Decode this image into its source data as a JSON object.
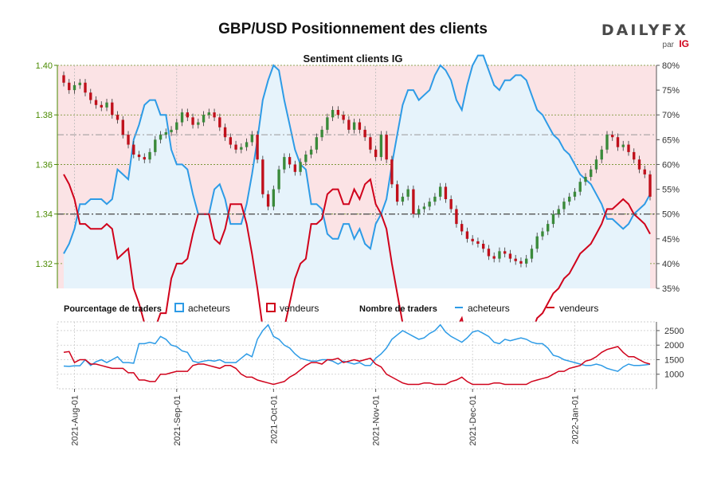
{
  "header": {
    "title": "GBP/USD Positionnement des clients",
    "subtitle": "Sentiment clients IG",
    "logo_text": "DAILYFX",
    "logo_par": "par",
    "logo_ig": "IG"
  },
  "legend": {
    "pct_title": "Pourcentage de traders",
    "pct_buyers": "acheteurs",
    "pct_sellers": "vendeurs",
    "count_title": "Nombre de traders",
    "count_buyers": "acheteurs",
    "count_sellers": "vendeurs"
  },
  "colors": {
    "buyers_line": "#2d9be6",
    "buyers_fill": "#e6f3fb",
    "sellers_line": "#d0021b",
    "sellers_bg": "#fbe3e5",
    "candle_up": "#3a8a3a",
    "candle_down": "#c0101b",
    "axis_left": "#4a8a00"
  },
  "chart_data": {
    "type": "candlestick",
    "title": "Sentiment clients IG",
    "n": 110,
    "price_axis": {
      "ticks": [
        "1.32",
        "1.34",
        "1.36",
        "1.38",
        "1.40"
      ],
      "min": 1.31,
      "max": 1.4
    },
    "pct_axis": {
      "ticks": [
        "35%",
        "40%",
        "45%",
        "50%",
        "55%",
        "60%",
        "65%",
        "70%",
        "75%",
        "80%"
      ],
      "min": 35,
      "max": 80
    },
    "count_axis": {
      "ticks": [
        "1000",
        "1500",
        "2000",
        "2500"
      ],
      "min": 500,
      "max": 2800
    },
    "date_labels": [
      {
        "i": 2,
        "label": "2021-Aug-01"
      },
      {
        "i": 21,
        "label": "2021-Sep-01"
      },
      {
        "i": 39,
        "label": "2021-Oct-01"
      },
      {
        "i": 58,
        "label": "2021-Nov-01"
      },
      {
        "i": 76,
        "label": "2021-Dec-01"
      },
      {
        "i": 95,
        "label": "2022-Jan-01"
      }
    ],
    "reference_lines": {
      "pct_50": 50,
      "price_dashdot": 1.372
    },
    "close": [
      1.393,
      1.39,
      1.392,
      1.393,
      1.389,
      1.386,
      1.384,
      1.383,
      1.385,
      1.38,
      1.378,
      1.372,
      1.368,
      1.364,
      1.363,
      1.362,
      1.365,
      1.37,
      1.372,
      1.373,
      1.374,
      1.377,
      1.381,
      1.379,
      1.376,
      1.377,
      1.38,
      1.381,
      1.379,
      1.375,
      1.371,
      1.368,
      1.366,
      1.367,
      1.369,
      1.372,
      1.362,
      1.348,
      1.343,
      1.35,
      1.358,
      1.363,
      1.36,
      1.357,
      1.361,
      1.364,
      1.366,
      1.371,
      1.374,
      1.379,
      1.382,
      1.38,
      1.378,
      1.374,
      1.377,
      1.374,
      1.371,
      1.366,
      1.363,
      1.372,
      1.362,
      1.352,
      1.345,
      1.347,
      1.35,
      1.34,
      1.342,
      1.343,
      1.345,
      1.347,
      1.351,
      1.346,
      1.342,
      1.336,
      1.333,
      1.33,
      1.329,
      1.328,
      1.326,
      1.323,
      1.322,
      1.325,
      1.324,
      1.322,
      1.321,
      1.32,
      1.322,
      1.326,
      1.331,
      1.333,
      1.336,
      1.34,
      1.342,
      1.345,
      1.347,
      1.349,
      1.353,
      1.355,
      1.358,
      1.362,
      1.366,
      1.372,
      1.371,
      1.367,
      1.368,
      1.365,
      1.362,
      1.358,
      1.356,
      1.347
    ],
    "buyers_pct": [
      42,
      44,
      47,
      52,
      52,
      53,
      53,
      53,
      52,
      53,
      59,
      58,
      57,
      65,
      68,
      72,
      73,
      73,
      70,
      70,
      63,
      60,
      60,
      59,
      54,
      50,
      50,
      50,
      55,
      56,
      53,
      48,
      48,
      48,
      52,
      58,
      65,
      73,
      77,
      80,
      79,
      73,
      68,
      63,
      60,
      59,
      52,
      52,
      51,
      46,
      45,
      45,
      48,
      48,
      45,
      47,
      44,
      43,
      48,
      50,
      53,
      60,
      66,
      72,
      75,
      75,
      73,
      74,
      75,
      78,
      80,
      79,
      77,
      73,
      71,
      76,
      80,
      82,
      82,
      79,
      76,
      75,
      77,
      77,
      78,
      78,
      77,
      74,
      71,
      70,
      68,
      66,
      65,
      63,
      62,
      60,
      58,
      57,
      56,
      54,
      52,
      49,
      49,
      48,
      47,
      48,
      50,
      51,
      52,
      54
    ],
    "buyers_count": [
      1280,
      1270,
      1290,
      1290,
      1500,
      1300,
      1430,
      1500,
      1400,
      1500,
      1600,
      1400,
      1400,
      1380,
      2050,
      2050,
      2100,
      2050,
      2300,
      2200,
      2000,
      1950,
      1800,
      1750,
      1450,
      1400,
      1450,
      1480,
      1450,
      1500,
      1400,
      1400,
      1400,
      1550,
      1700,
      1600,
      2200,
      2500,
      2700,
      2300,
      2200,
      2000,
      1900,
      1700,
      1550,
      1500,
      1450,
      1450,
      1500,
      1500,
      1450,
      1350,
      1450,
      1400,
      1350,
      1400,
      1300,
      1300,
      1550,
      1700,
      1900,
      2200,
      2350,
      2500,
      2400,
      2300,
      2200,
      2250,
      2400,
      2500,
      2700,
      2450,
      2300,
      2200,
      2100,
      2250,
      2450,
      2500,
      2400,
      2300,
      2100,
      2050,
      2200,
      2150,
      2200,
      2250,
      2200,
      2100,
      2050,
      2050,
      1900,
      1650,
      1600,
      1500,
      1450,
      1400,
      1350,
      1300,
      1300,
      1350,
      1300,
      1200,
      1150,
      1100,
      1250,
      1350,
      1300,
      1300,
      1320,
      1340
    ],
    "sellers_count": [
      1750,
      1780,
      1400,
      1500,
      1500,
      1350,
      1350,
      1300,
      1250,
      1200,
      1200,
      1200,
      1050,
      1050,
      800,
      800,
      750,
      750,
      1000,
      1000,
      1050,
      1100,
      1100,
      1100,
      1300,
      1350,
      1350,
      1300,
      1250,
      1200,
      1300,
      1300,
      1200,
      1000,
      900,
      900,
      800,
      750,
      700,
      650,
      700,
      750,
      900,
      1000,
      1150,
      1300,
      1400,
      1400,
      1350,
      1500,
      1500,
      1550,
      1400,
      1450,
      1500,
      1450,
      1500,
      1550,
      1350,
      1250,
      1000,
      900,
      800,
      700,
      650,
      650,
      650,
      700,
      700,
      650,
      650,
      650,
      750,
      800,
      900,
      750,
      650,
      650,
      650,
      650,
      700,
      700,
      650,
      650,
      650,
      650,
      650,
      750,
      800,
      850,
      900,
      1000,
      1100,
      1100,
      1200,
      1250,
      1300,
      1450,
      1500,
      1600,
      1750,
      1850,
      1900,
      1950,
      1750,
      1600,
      1600,
      1500,
      1400,
      1350
    ]
  }
}
